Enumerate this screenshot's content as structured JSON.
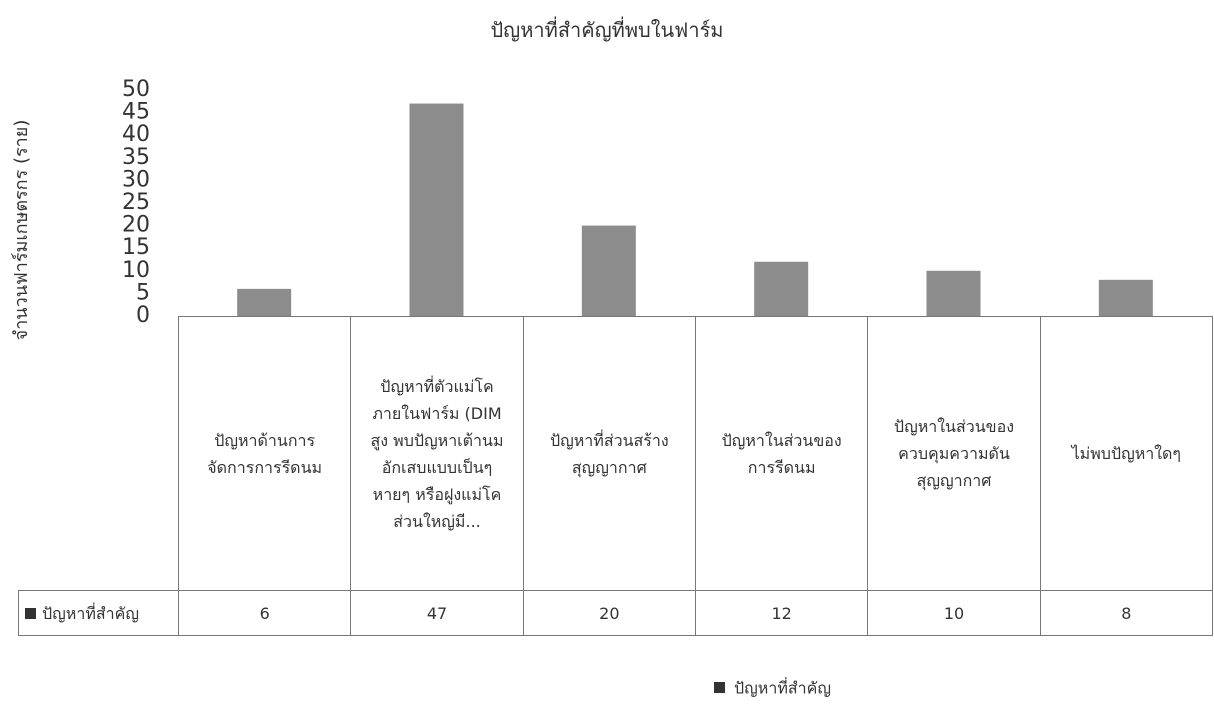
{
  "chart_data": {
    "type": "bar",
    "title": "ปัญหาที่สำคัญที่พบในฟาร์ม",
    "y_label": "จำนวนฟาร์มเกษตรกร (ราย)",
    "categories": [
      "ปัญหาด้านการจัดการการรีดนม",
      "ปัญหาที่ตัวแม่โคภายในฟาร์ม (DIM สูง พบปัญหาเต้านมอักเสบแบบเป็นๆ หายๆ หรือฝูงแม่โคส่วนใหญ่มี...",
      "ปัญหาที่ส่วนสร้างสุญญากาศ",
      "ปัญหาในส่วนของการรีดนม",
      "ปัญหาในส่วนของควบคุมความดันสุญญากาศ",
      "ไม่พบปัญหาใดๆ"
    ],
    "series": [
      {
        "name": "ปัญหาที่สำคัญ",
        "color": "#8c8c8c",
        "values": [
          6,
          47,
          20,
          12,
          10,
          8
        ]
      }
    ],
    "ylim": [
      0,
      50
    ],
    "yticks": [
      0,
      5,
      10,
      15,
      20,
      25,
      30,
      35,
      40,
      45,
      50
    ],
    "legend": "bottom",
    "data_table": true
  }
}
